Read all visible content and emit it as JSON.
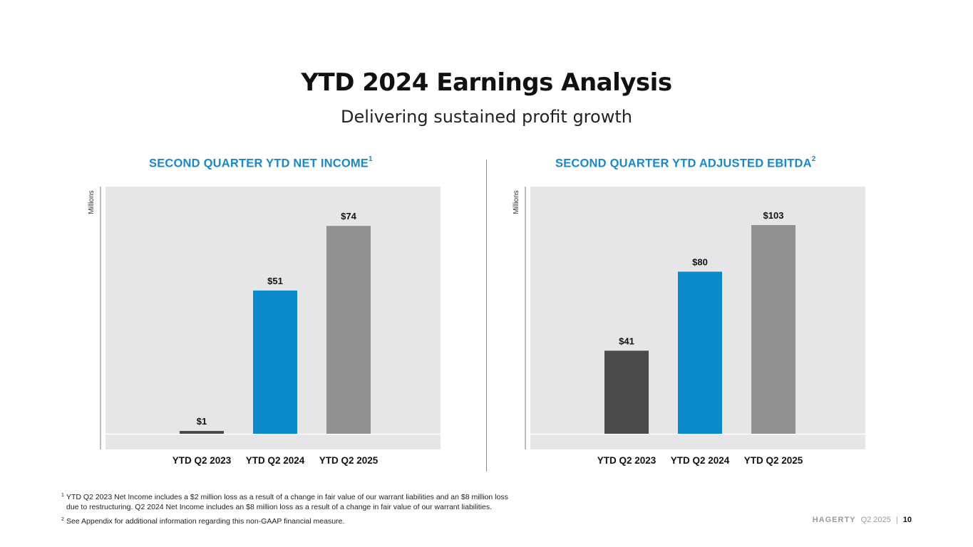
{
  "header": {
    "title": "YTD 2024 Earnings Analysis",
    "subtitle": "Delivering sustained profit growth"
  },
  "colors": {
    "accent": "#1a87c9",
    "plot_bg": "#e6e6e8",
    "bar_2023": "#4a4a4a",
    "bar_2024": "#0a89cc",
    "bar_2025": "#919191"
  },
  "chart_data": [
    {
      "type": "bar",
      "title": "SECOND QUARTER YTD NET INCOME",
      "title_footnote": "1",
      "ylabel": "Millions",
      "categories": [
        "YTD Q2 2023",
        "YTD Q2 2024",
        "YTD Q2 2025"
      ],
      "values": [
        1,
        51,
        74
      ],
      "value_labels": [
        "$1",
        "$51",
        "$74"
      ],
      "ylim": [
        0,
        88
      ]
    },
    {
      "type": "bar",
      "title": "SECOND QUARTER YTD ADJUSTED EBITDA",
      "title_footnote": "2",
      "ylabel": "Millions",
      "categories": [
        "YTD Q2 2023",
        "YTD Q2 2024",
        "YTD Q2 2025"
      ],
      "values": [
        41,
        80,
        103
      ],
      "value_labels": [
        "$41",
        "$80",
        "$103"
      ],
      "ylim": [
        0,
        122
      ]
    }
  ],
  "footnotes": [
    {
      "num": "1",
      "lines": [
        "YTD Q2 2023 Net Income includes a $2 million loss as a result of a change in fair value of our warrant liabilities and an $8 million loss",
        "due to restructuring. Q2 2024 Net Income includes an $8 million loss as a result of a change in fair value of our warrant liabilities."
      ]
    },
    {
      "num": "2",
      "lines": [
        "See Appendix for additional information regarding this non-GAAP financial measure."
      ]
    }
  ],
  "footer": {
    "brand": "HAGERTY",
    "period": "Q2 2025",
    "separator": "|",
    "page": "10"
  }
}
